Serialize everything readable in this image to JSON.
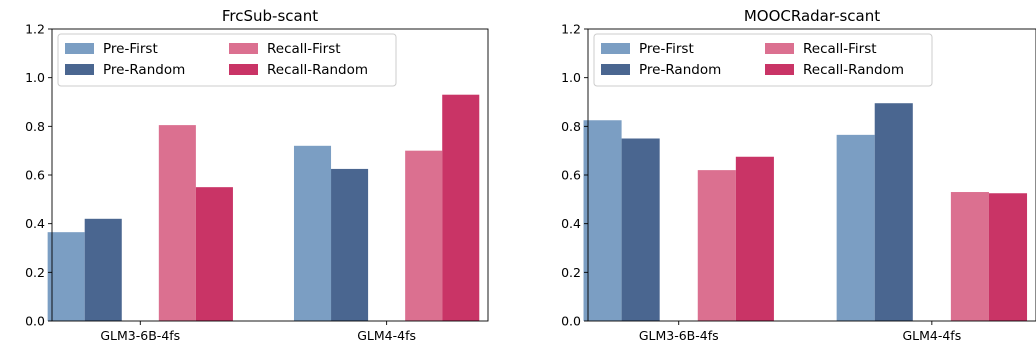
{
  "chart_data": [
    {
      "type": "bar",
      "title": "FrcSub-scant",
      "categories": [
        "GLM3-6B-4fs",
        "GLM4-4fs"
      ],
      "xlabel": "",
      "ylabel": "",
      "ylim": [
        0,
        1.2
      ],
      "yticks": [
        "0.0",
        "0.2",
        "0.4",
        "0.6",
        "0.8",
        "1.0",
        "1.2"
      ],
      "grid": false,
      "legend_position": "top-left",
      "series": [
        {
          "name": "Pre-First",
          "color": "#7b9ec3",
          "values": [
            0.365,
            0.72
          ]
        },
        {
          "name": "Pre-Random",
          "color": "#4a6690",
          "values": [
            0.42,
            0.625
          ]
        },
        {
          "name": "Recall-First",
          "color": "#db7090",
          "values": [
            0.805,
            0.7
          ]
        },
        {
          "name": "Recall-Random",
          "color": "#c93466",
          "values": [
            0.55,
            0.93
          ]
        }
      ]
    },
    {
      "type": "bar",
      "title": "MOOCRadar-scant",
      "categories": [
        "GLM3-6B-4fs",
        "GLM4-4fs"
      ],
      "xlabel": "",
      "ylabel": "",
      "ylim": [
        0,
        1.2
      ],
      "yticks": [
        "0.0",
        "0.2",
        "0.4",
        "0.6",
        "0.8",
        "1.0",
        "1.2"
      ],
      "grid": false,
      "legend_position": "top-left",
      "series": [
        {
          "name": "Pre-First",
          "color": "#7b9ec3",
          "values": [
            0.825,
            0.765
          ]
        },
        {
          "name": "Pre-Random",
          "color": "#4a6690",
          "values": [
            0.75,
            0.895
          ]
        },
        {
          "name": "Recall-First",
          "color": "#db7090",
          "values": [
            0.62,
            0.53
          ]
        },
        {
          "name": "Recall-Random",
          "color": "#c93466",
          "values": [
            0.675,
            0.525
          ]
        }
      ]
    }
  ]
}
